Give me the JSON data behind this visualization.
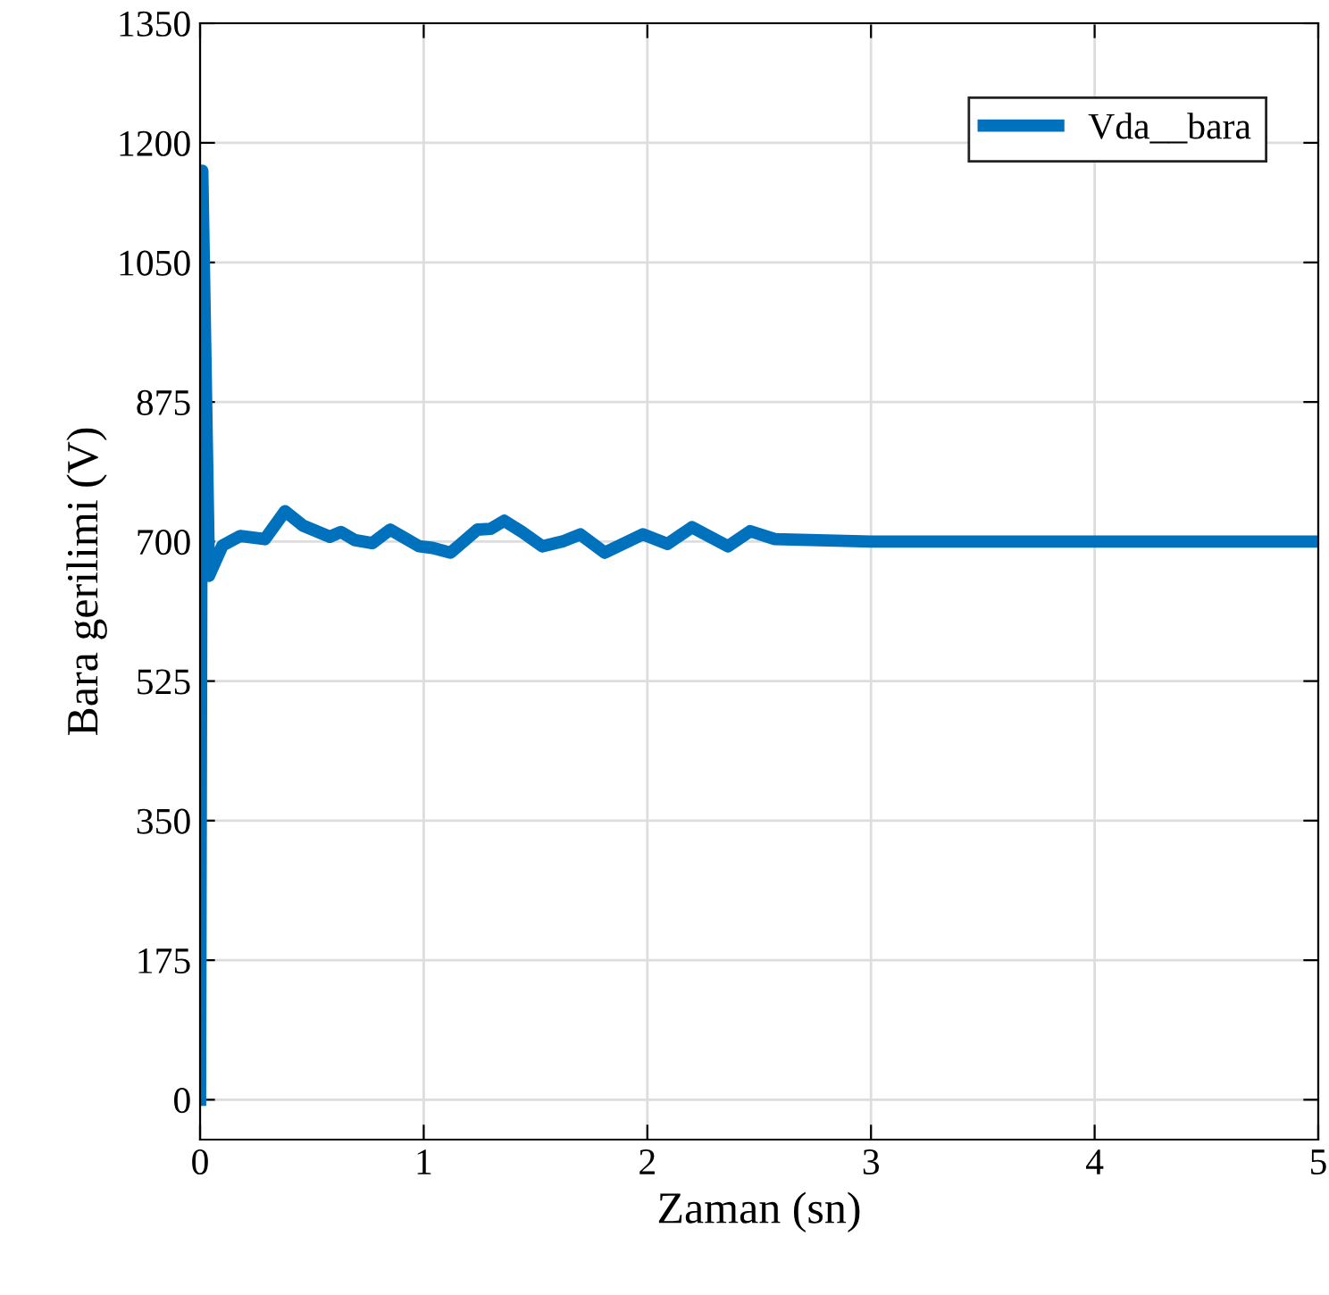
{
  "chart_data": {
    "type": "line",
    "xlabel": "Zaman (sn)",
    "ylabel": "Bara gerilimi (V)",
    "xlim": [
      0,
      5
    ],
    "ylim": [
      -50,
      1350
    ],
    "xticks": [
      0,
      1,
      2,
      3,
      4,
      5
    ],
    "yticks": [
      0,
      175,
      350,
      525,
      700,
      875,
      1050,
      1200,
      1350
    ],
    "grid": true,
    "legend": "top right",
    "marker": "none",
    "line_style": "solid",
    "series": [
      {
        "name": "Vda__bara",
        "color": "#0072bd",
        "x": [
          0,
          0.01,
          0.04,
          0.1,
          0.18,
          0.29,
          0.38,
          0.46,
          0.58,
          0.63,
          0.69,
          0.77,
          0.85,
          0.98,
          1.04,
          1.12,
          1.24,
          1.3,
          1.36,
          1.44,
          1.53,
          1.62,
          1.7,
          1.81,
          1.98,
          2.09,
          2.2,
          2.36,
          2.46,
          2.57,
          3,
          4,
          5
        ],
        "values": [
          0,
          1165,
          657,
          695,
          707,
          703,
          738,
          720,
          706,
          712,
          702,
          698,
          715,
          694,
          692,
          686,
          715,
          716,
          726,
          712,
          694,
          700,
          709,
          686,
          709,
          697,
          718,
          694,
          713,
          703,
          700,
          700,
          700
        ]
      }
    ]
  }
}
